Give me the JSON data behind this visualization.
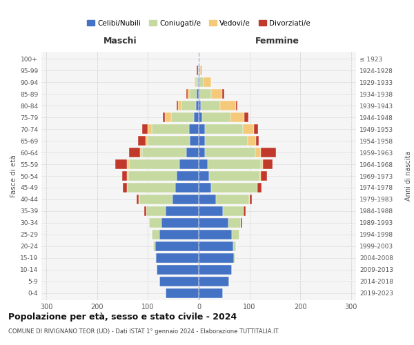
{
  "age_groups": [
    "0-4",
    "5-9",
    "10-14",
    "15-19",
    "20-24",
    "25-29",
    "30-34",
    "35-39",
    "40-44",
    "45-49",
    "50-54",
    "55-59",
    "60-64",
    "65-69",
    "70-74",
    "75-79",
    "80-84",
    "85-89",
    "90-94",
    "95-99",
    "100+"
  ],
  "birth_years": [
    "2019-2023",
    "2014-2018",
    "2009-2013",
    "2004-2008",
    "1999-2003",
    "1994-1998",
    "1989-1993",
    "1984-1988",
    "1979-1983",
    "1974-1978",
    "1969-1973",
    "1964-1968",
    "1959-1963",
    "1954-1958",
    "1949-1953",
    "1944-1948",
    "1939-1943",
    "1934-1938",
    "1929-1933",
    "1924-1928",
    "≤ 1923"
  ],
  "colors": {
    "celibe": "#4472C4",
    "coniugato": "#C5D9A0",
    "vedovo": "#F5C97A",
    "divorziato": "#C0392B"
  },
  "maschi": {
    "celibe": [
      65,
      77,
      83,
      84,
      85,
      78,
      73,
      65,
      52,
      46,
      44,
      38,
      24,
      18,
      19,
      9,
      6,
      4,
      2,
      1,
      0
    ],
    "coniugato": [
      0,
      0,
      0,
      2,
      5,
      15,
      25,
      38,
      65,
      95,
      95,
      100,
      88,
      82,
      73,
      46,
      28,
      14,
      4,
      1,
      0
    ],
    "vedovo": [
      0,
      0,
      0,
      0,
      0,
      0,
      0,
      0,
      1,
      1,
      2,
      4,
      3,
      5,
      8,
      12,
      7,
      4,
      2,
      0,
      0
    ],
    "divorziato": [
      0,
      0,
      0,
      0,
      0,
      0,
      0,
      4,
      5,
      8,
      10,
      22,
      22,
      15,
      12,
      4,
      2,
      2,
      0,
      2,
      0
    ]
  },
  "femmine": {
    "nubile": [
      48,
      60,
      65,
      70,
      68,
      65,
      58,
      48,
      34,
      25,
      20,
      17,
      12,
      12,
      12,
      7,
      4,
      2,
      2,
      0,
      0
    ],
    "coniugata": [
      0,
      0,
      0,
      2,
      5,
      15,
      25,
      40,
      65,
      90,
      100,
      105,
      100,
      85,
      75,
      55,
      38,
      22,
      8,
      2,
      0
    ],
    "vedova": [
      0,
      0,
      0,
      0,
      0,
      0,
      0,
      0,
      1,
      1,
      2,
      5,
      10,
      16,
      22,
      28,
      32,
      22,
      14,
      2,
      0
    ],
    "divorziata": [
      0,
      0,
      0,
      0,
      0,
      0,
      2,
      5,
      5,
      8,
      12,
      18,
      30,
      5,
      8,
      8,
      2,
      4,
      0,
      2,
      0
    ]
  },
  "title": "Popolazione per età, sesso e stato civile - 2024",
  "subtitle": "COMUNE DI RIVIGNANO TEOR (UD) - Dati ISTAT 1° gennaio 2024 - Elaborazione TUTTITALIA.IT",
  "xlabel_left": "Maschi",
  "xlabel_right": "Femmine",
  "ylabel_left": "Fasce di età",
  "ylabel_right": "Anni di nascita",
  "xlim": 310,
  "legend_labels": [
    "Celibi/Nubili",
    "Coniugati/e",
    "Vedovi/e",
    "Divorziati/e"
  ],
  "bg_color": "#FFFFFF",
  "plot_bg_color": "#F5F5F5",
  "grid_color": "#CCCCCC",
  "bar_height": 0.85
}
